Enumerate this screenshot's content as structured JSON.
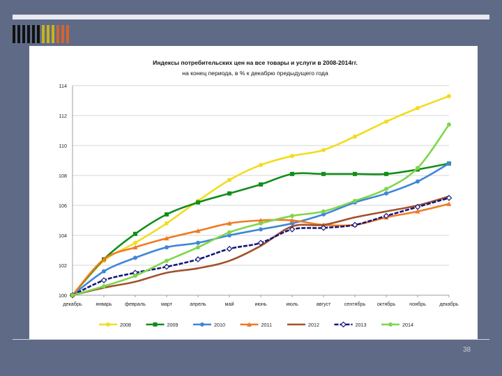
{
  "slide": {
    "page_number": "38"
  },
  "deco_bars": [
    "#111111",
    "#111111",
    "#111111",
    "#111111",
    "#111111",
    "#111111",
    "#c9b21b",
    "#c9b21b",
    "#c9b21b",
    "#d4652c",
    "#d4652c",
    "#d4652c"
  ],
  "chart_data": {
    "type": "line",
    "title": "Индексы потребительских цен на все товары и услуги в 2008-2014гг.",
    "subtitle": "на конец периода, в % к декабрю предыдущего года",
    "categories": [
      "декабрь",
      "январь",
      "февраль",
      "март",
      "апрель",
      "май",
      "июнь",
      "июль",
      "август",
      "сентябрь",
      "октябрь",
      "ноябрь",
      "декабрь"
    ],
    "yticks": [
      "100",
      "102",
      "104",
      "106",
      "108",
      "110",
      "112",
      "114"
    ],
    "ylim": [
      100,
      114
    ],
    "grid": true,
    "legend_position": "bottom",
    "series": [
      {
        "name": "2008",
        "color": "#f2dc1f",
        "marker": "circle",
        "values": [
          100,
          102.3,
          103.5,
          104.8,
          106.3,
          107.7,
          108.7,
          109.3,
          109.7,
          110.6,
          111.6,
          112.5,
          113.3
        ]
      },
      {
        "name": "2009",
        "color": "#138d1c",
        "marker": "square",
        "values": [
          100,
          102.4,
          104.1,
          105.4,
          106.2,
          106.8,
          107.4,
          108.1,
          108.1,
          108.1,
          108.1,
          108.4,
          108.8
        ]
      },
      {
        "name": "2010",
        "color": "#3f86d8",
        "marker": "circle",
        "values": [
          100,
          101.6,
          102.5,
          103.2,
          103.5,
          104.0,
          104.4,
          104.8,
          105.4,
          106.2,
          106.8,
          107.6,
          108.8
        ]
      },
      {
        "name": "2011",
        "color": "#f07a22",
        "marker": "triangle",
        "values": [
          100,
          102.4,
          103.2,
          103.8,
          104.3,
          104.8,
          105.0,
          105.0,
          104.7,
          104.7,
          105.2,
          105.6,
          106.1
        ]
      },
      {
        "name": "2012",
        "color": "#a0522d",
        "marker": "none",
        "values": [
          100,
          100.5,
          100.9,
          101.5,
          101.8,
          102.3,
          103.3,
          104.6,
          104.7,
          105.2,
          105.6,
          106.0,
          106.6
        ]
      },
      {
        "name": "2013",
        "color": "#14147a",
        "marker": "diamond",
        "values": [
          100,
          101.0,
          101.5,
          101.9,
          102.4,
          103.1,
          103.5,
          104.4,
          104.5,
          104.7,
          105.3,
          105.9,
          106.5
        ]
      },
      {
        "name": "2014",
        "color": "#7fd64a",
        "marker": "circle",
        "values": [
          100,
          100.6,
          101.3,
          102.3,
          103.2,
          104.2,
          104.8,
          105.3,
          105.6,
          106.3,
          107.1,
          108.5,
          111.4
        ]
      }
    ]
  }
}
